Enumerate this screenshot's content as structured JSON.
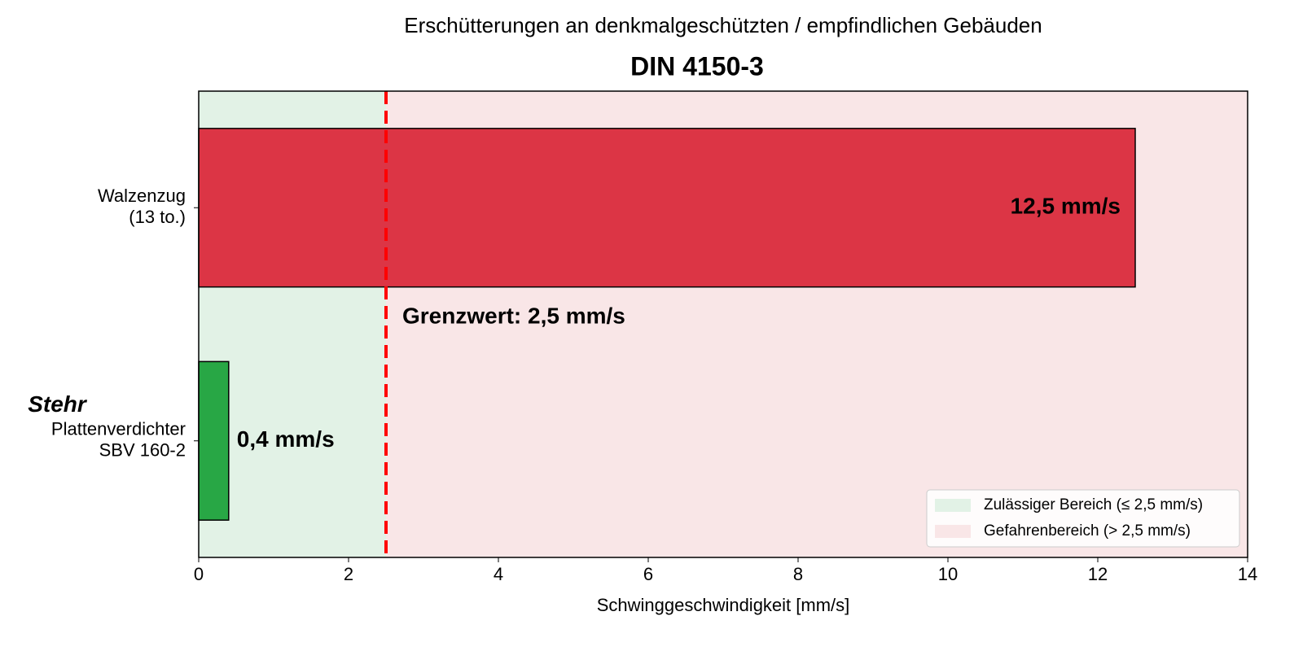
{
  "chart_data": {
    "type": "hbar",
    "subtitle": "Erschütterungen an denkmalgeschützten / empfindlichen Gebäuden",
    "title": "DIN 4150-3",
    "xlabel": "Schwinggeschwindigkeit [mm/s]",
    "categories": [
      [
        "Walzenzug",
        "(13 to.)"
      ],
      [
        "Plattenverdichter",
        "SBV 160-2"
      ]
    ],
    "category_badges": [
      null,
      "Stehr"
    ],
    "badge_color": "#1a7abf",
    "values": [
      12.5,
      0.4
    ],
    "value_labels": [
      "12,5 mm/s",
      "0,4 mm/s"
    ],
    "colors": [
      "#dc3545",
      "#28a745"
    ],
    "label_colors": [
      "#ffffff",
      "#000000"
    ],
    "xlim": [
      0,
      14
    ],
    "xticks": [
      0,
      2,
      4,
      6,
      8,
      10,
      12,
      14
    ],
    "threshold": {
      "value": 2.5,
      "label": "Grenzwert: 2,5 mm/s",
      "color": "#ff0000"
    },
    "regions": [
      {
        "name": "Zulässiger Bereich (≤ 2,5 mm/s)",
        "color": "#e2f2e6",
        "range": [
          0,
          2.5
        ]
      },
      {
        "name": "Gefahrenbereich (> 2,5 mm/s)",
        "color": "#f9e6e7",
        "range": [
          2.5,
          14
        ]
      }
    ],
    "legend": "lower right"
  }
}
